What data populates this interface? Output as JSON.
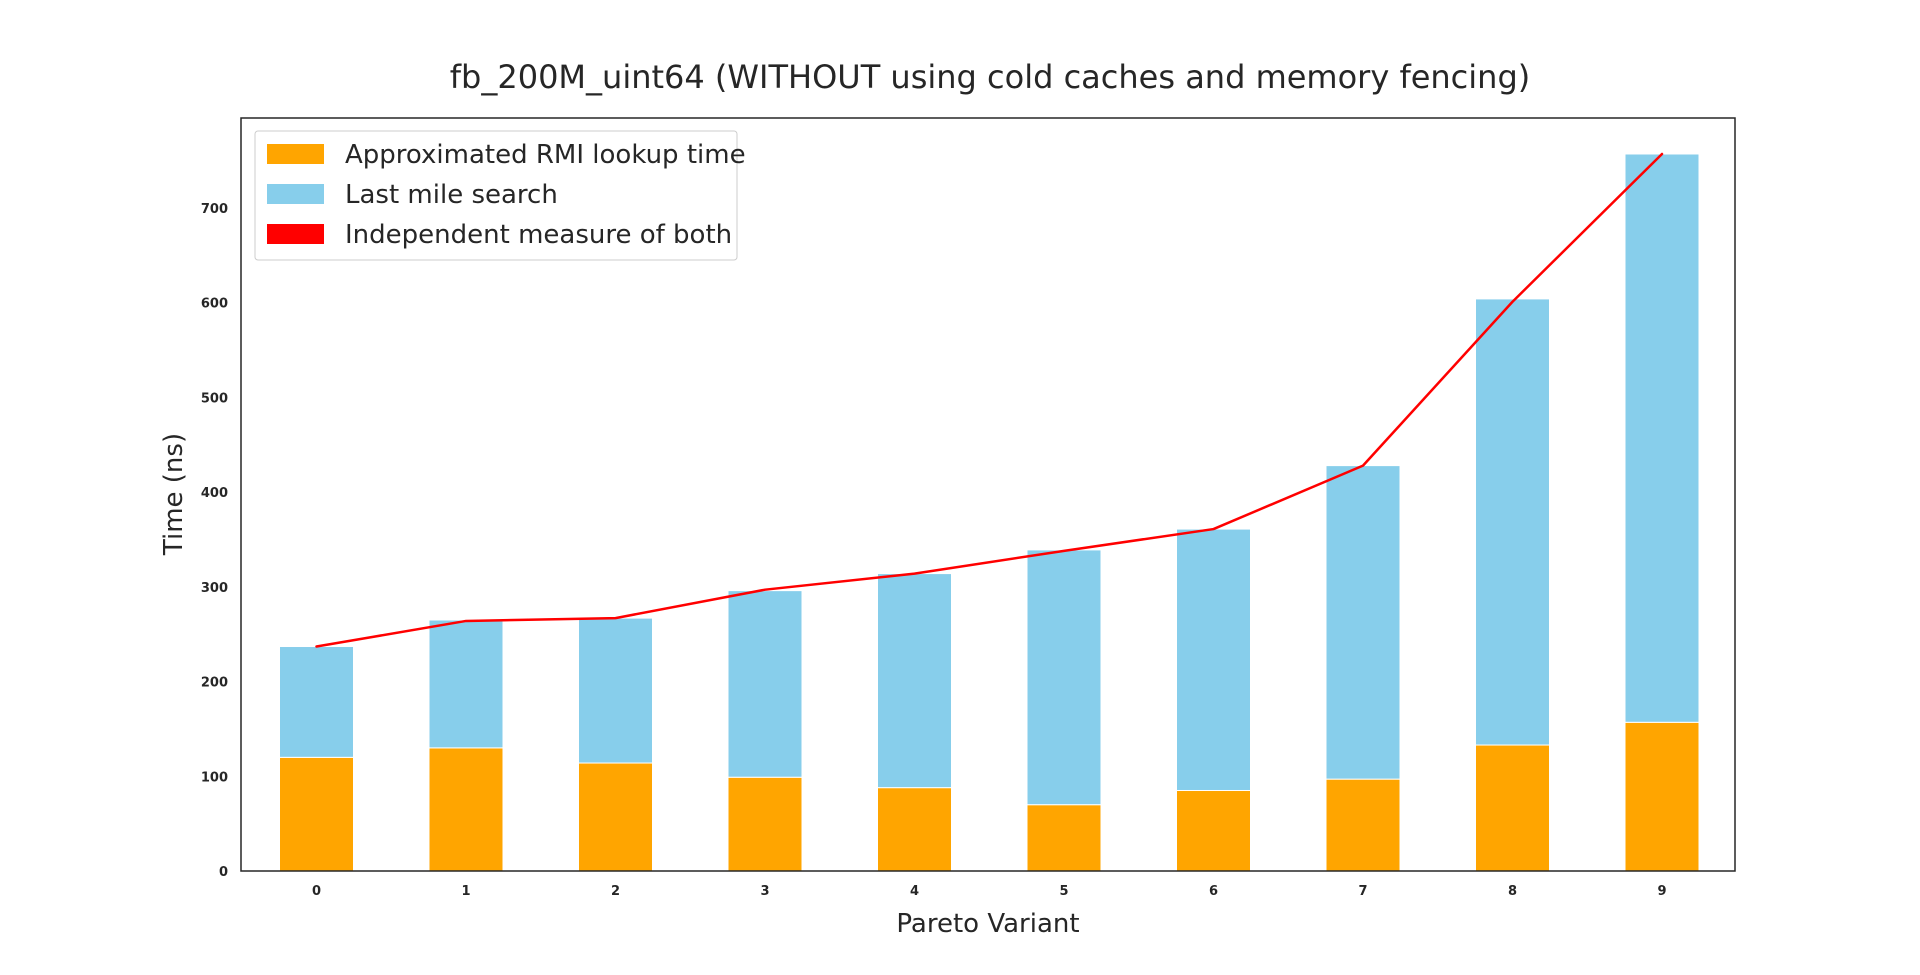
{
  "chart_data": {
    "type": "bar",
    "stacked": true,
    "title": "fb_200M_uint64 (WITHOUT using cold caches and memory fencing)",
    "xlabel": "Pareto Variant",
    "ylabel": "Time (ns)",
    "categories": [
      "0",
      "1",
      "2",
      "3",
      "4",
      "5",
      "6",
      "7",
      "8",
      "9"
    ],
    "ylim": [
      0,
      795
    ],
    "yticks": [
      0,
      100,
      200,
      300,
      400,
      500,
      600,
      700
    ],
    "grid": false,
    "legend_position": "top-left",
    "series": [
      {
        "name": "Approximated RMI lookup time",
        "kind": "bar",
        "color": "#FFA500",
        "values": [
          120,
          130,
          114,
          99,
          88,
          70,
          85,
          97,
          133,
          157
        ]
      },
      {
        "name": "Last mile search",
        "kind": "bar",
        "color": "#87CEEB",
        "values": [
          117,
          135,
          153,
          197,
          226,
          269,
          276,
          331,
          471,
          600
        ]
      },
      {
        "name": "Independent measure of both",
        "kind": "line",
        "color": "#FF0000",
        "values": [
          237,
          264,
          267,
          297,
          314,
          338,
          361,
          428,
          601,
          757
        ]
      }
    ]
  }
}
